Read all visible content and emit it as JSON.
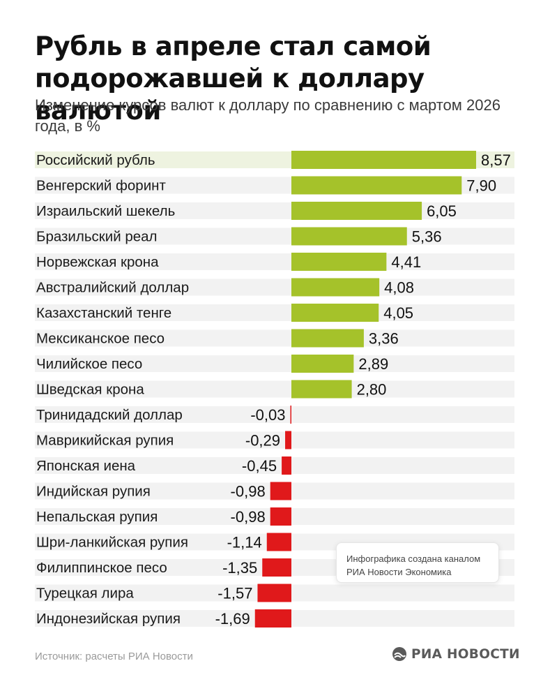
{
  "header": {
    "title": "Рубль в апреле стал самой подорожавшей к доллару валютой",
    "subtitle": "Изменение курсов валют к доллару по сравнению с мартом 2026 года, в %"
  },
  "chart_data": {
    "type": "bar",
    "orientation": "horizontal",
    "categories": [
      "Российский рубль",
      "Венгерский форинт",
      "Израильский шекель",
      "Бразильский реал",
      "Норвежская крона",
      "Австралийский доллар",
      "Казахстанский тенге",
      "Мексиканское песо",
      "Чилийское песо",
      "Шведская крона",
      "Тринидадский доллар",
      "Маврикийская рупия",
      "Японская иена",
      "Индийская рупия",
      "Непальская рупия",
      "Шри-ланкийская рупия",
      "Филиппинское песо",
      "Турецкая лира",
      "Индонезийская рупия"
    ],
    "values": [
      8.57,
      7.9,
      6.05,
      5.36,
      4.41,
      4.08,
      4.05,
      3.36,
      2.89,
      2.8,
      -0.03,
      -0.29,
      -0.45,
      -0.98,
      -0.98,
      -1.14,
      -1.35,
      -1.57,
      -1.69
    ],
    "value_labels": [
      "8,57",
      "7,90",
      "6,05",
      "5,36",
      "4,41",
      "4,08",
      "4,05",
      "3,36",
      "2,89",
      "2,80",
      "-0,03",
      "-0,29",
      "-0,45",
      "-0,98",
      "-0,98",
      "-1,14",
      "-1,35",
      "-1,57",
      "-1,69"
    ],
    "highlight_category": "Российский рубль",
    "grid": false,
    "legend": "none",
    "colors": {
      "positive": "#a5c22a",
      "negative": "#e0191b",
      "row_band": "#f2f2f2",
      "highlight_band": "#eef3e0"
    }
  },
  "note": {
    "line1": "Инфографика создана каналом",
    "line2": "РИА Новости Экономика"
  },
  "footer": {
    "source": "Источник: расчеты РИА Новости",
    "brand": "РИА НОВОСТИ",
    "brand_icon": "ria-logo-icon"
  }
}
